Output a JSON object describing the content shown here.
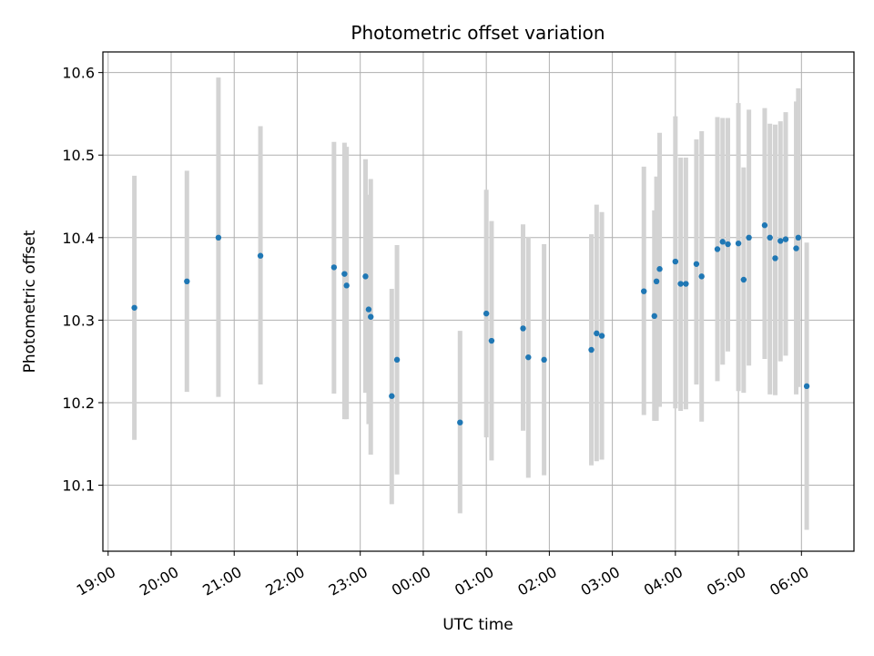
{
  "chart_data": {
    "type": "scatter",
    "title": "Photometric offset variation",
    "xlabel": "UTC time",
    "ylabel": "Photometric offset",
    "x_unit": "UTC time (HH:MM), observation night spanning midnight",
    "xlim": [
      "18:55",
      "06:50"
    ],
    "ylim": [
      10.02,
      10.625
    ],
    "x_ticks": [
      "19:00",
      "20:00",
      "21:00",
      "22:00",
      "23:00",
      "00:00",
      "01:00",
      "02:00",
      "03:00",
      "04:00",
      "05:00",
      "06:00"
    ],
    "y_ticks": [
      10.1,
      10.2,
      10.3,
      10.4,
      10.5,
      10.6
    ],
    "y_tick_labels": [
      "10.1",
      "10.2",
      "10.3",
      "10.4",
      "10.5",
      "10.6"
    ],
    "grid": true,
    "colors": {
      "point": "#1f77b4",
      "errorbar": "#d3d3d3",
      "grid": "#b0b0b0"
    },
    "series": [
      {
        "x": [
          "19:25",
          "20:15",
          "20:45",
          "21:25",
          "22:35",
          "22:45",
          "22:47",
          "23:05",
          "23:08",
          "23:10",
          "23:30",
          "23:35",
          "00:35",
          "01:00",
          "01:05",
          "01:35",
          "01:40",
          "01:55",
          "02:40",
          "02:45",
          "02:50",
          "03:30",
          "03:40",
          "03:42",
          "03:45",
          "04:00",
          "04:05",
          "04:10",
          "04:20",
          "04:25",
          "04:40",
          "04:45",
          "04:50",
          "05:00",
          "05:05",
          "05:10",
          "05:25",
          "05:30",
          "05:35",
          "05:40",
          "05:45",
          "05:55",
          "05:57",
          "06:05"
        ],
        "y": [
          10.315,
          10.347,
          10.4,
          10.378,
          10.364,
          10.356,
          10.342,
          10.353,
          10.313,
          10.304,
          10.208,
          10.252,
          10.176,
          10.308,
          10.275,
          10.29,
          10.255,
          10.252,
          10.264,
          10.284,
          10.281,
          10.335,
          10.305,
          10.347,
          10.362,
          10.371,
          10.344,
          10.344,
          10.368,
          10.353,
          10.386,
          10.395,
          10.392,
          10.393,
          10.349,
          10.4,
          10.415,
          10.4,
          10.375,
          10.396,
          10.398,
          10.387,
          10.4,
          10.22
        ],
        "yerr_low": [
          0.16,
          0.134,
          0.193,
          0.156,
          0.153,
          0.176,
          0.162,
          0.141,
          0.139,
          0.167,
          0.131,
          0.139,
          0.11,
          0.15,
          0.145,
          0.124,
          0.146,
          0.14,
          0.14,
          0.155,
          0.15,
          0.15,
          0.127,
          0.169,
          0.167,
          0.178,
          0.154,
          0.152,
          0.146,
          0.176,
          0.16,
          0.149,
          0.13,
          0.179,
          0.137,
          0.155,
          0.162,
          0.19,
          0.166,
          0.146,
          0.141,
          0.177,
          0.181,
          0.174
        ],
        "yerr_high": [
          0.16,
          0.134,
          0.194,
          0.157,
          0.152,
          0.159,
          0.168,
          0.142,
          0.139,
          0.167,
          0.13,
          0.139,
          0.111,
          0.15,
          0.145,
          0.126,
          0.146,
          0.14,
          0.14,
          0.156,
          0.15,
          0.151,
          0.128,
          0.127,
          0.165,
          0.176,
          0.153,
          0.153,
          0.151,
          0.176,
          0.16,
          0.15,
          0.153,
          0.17,
          0.136,
          0.155,
          0.142,
          0.138,
          0.162,
          0.145,
          0.154,
          0.178,
          0.181,
          0.174
        ]
      }
    ]
  }
}
